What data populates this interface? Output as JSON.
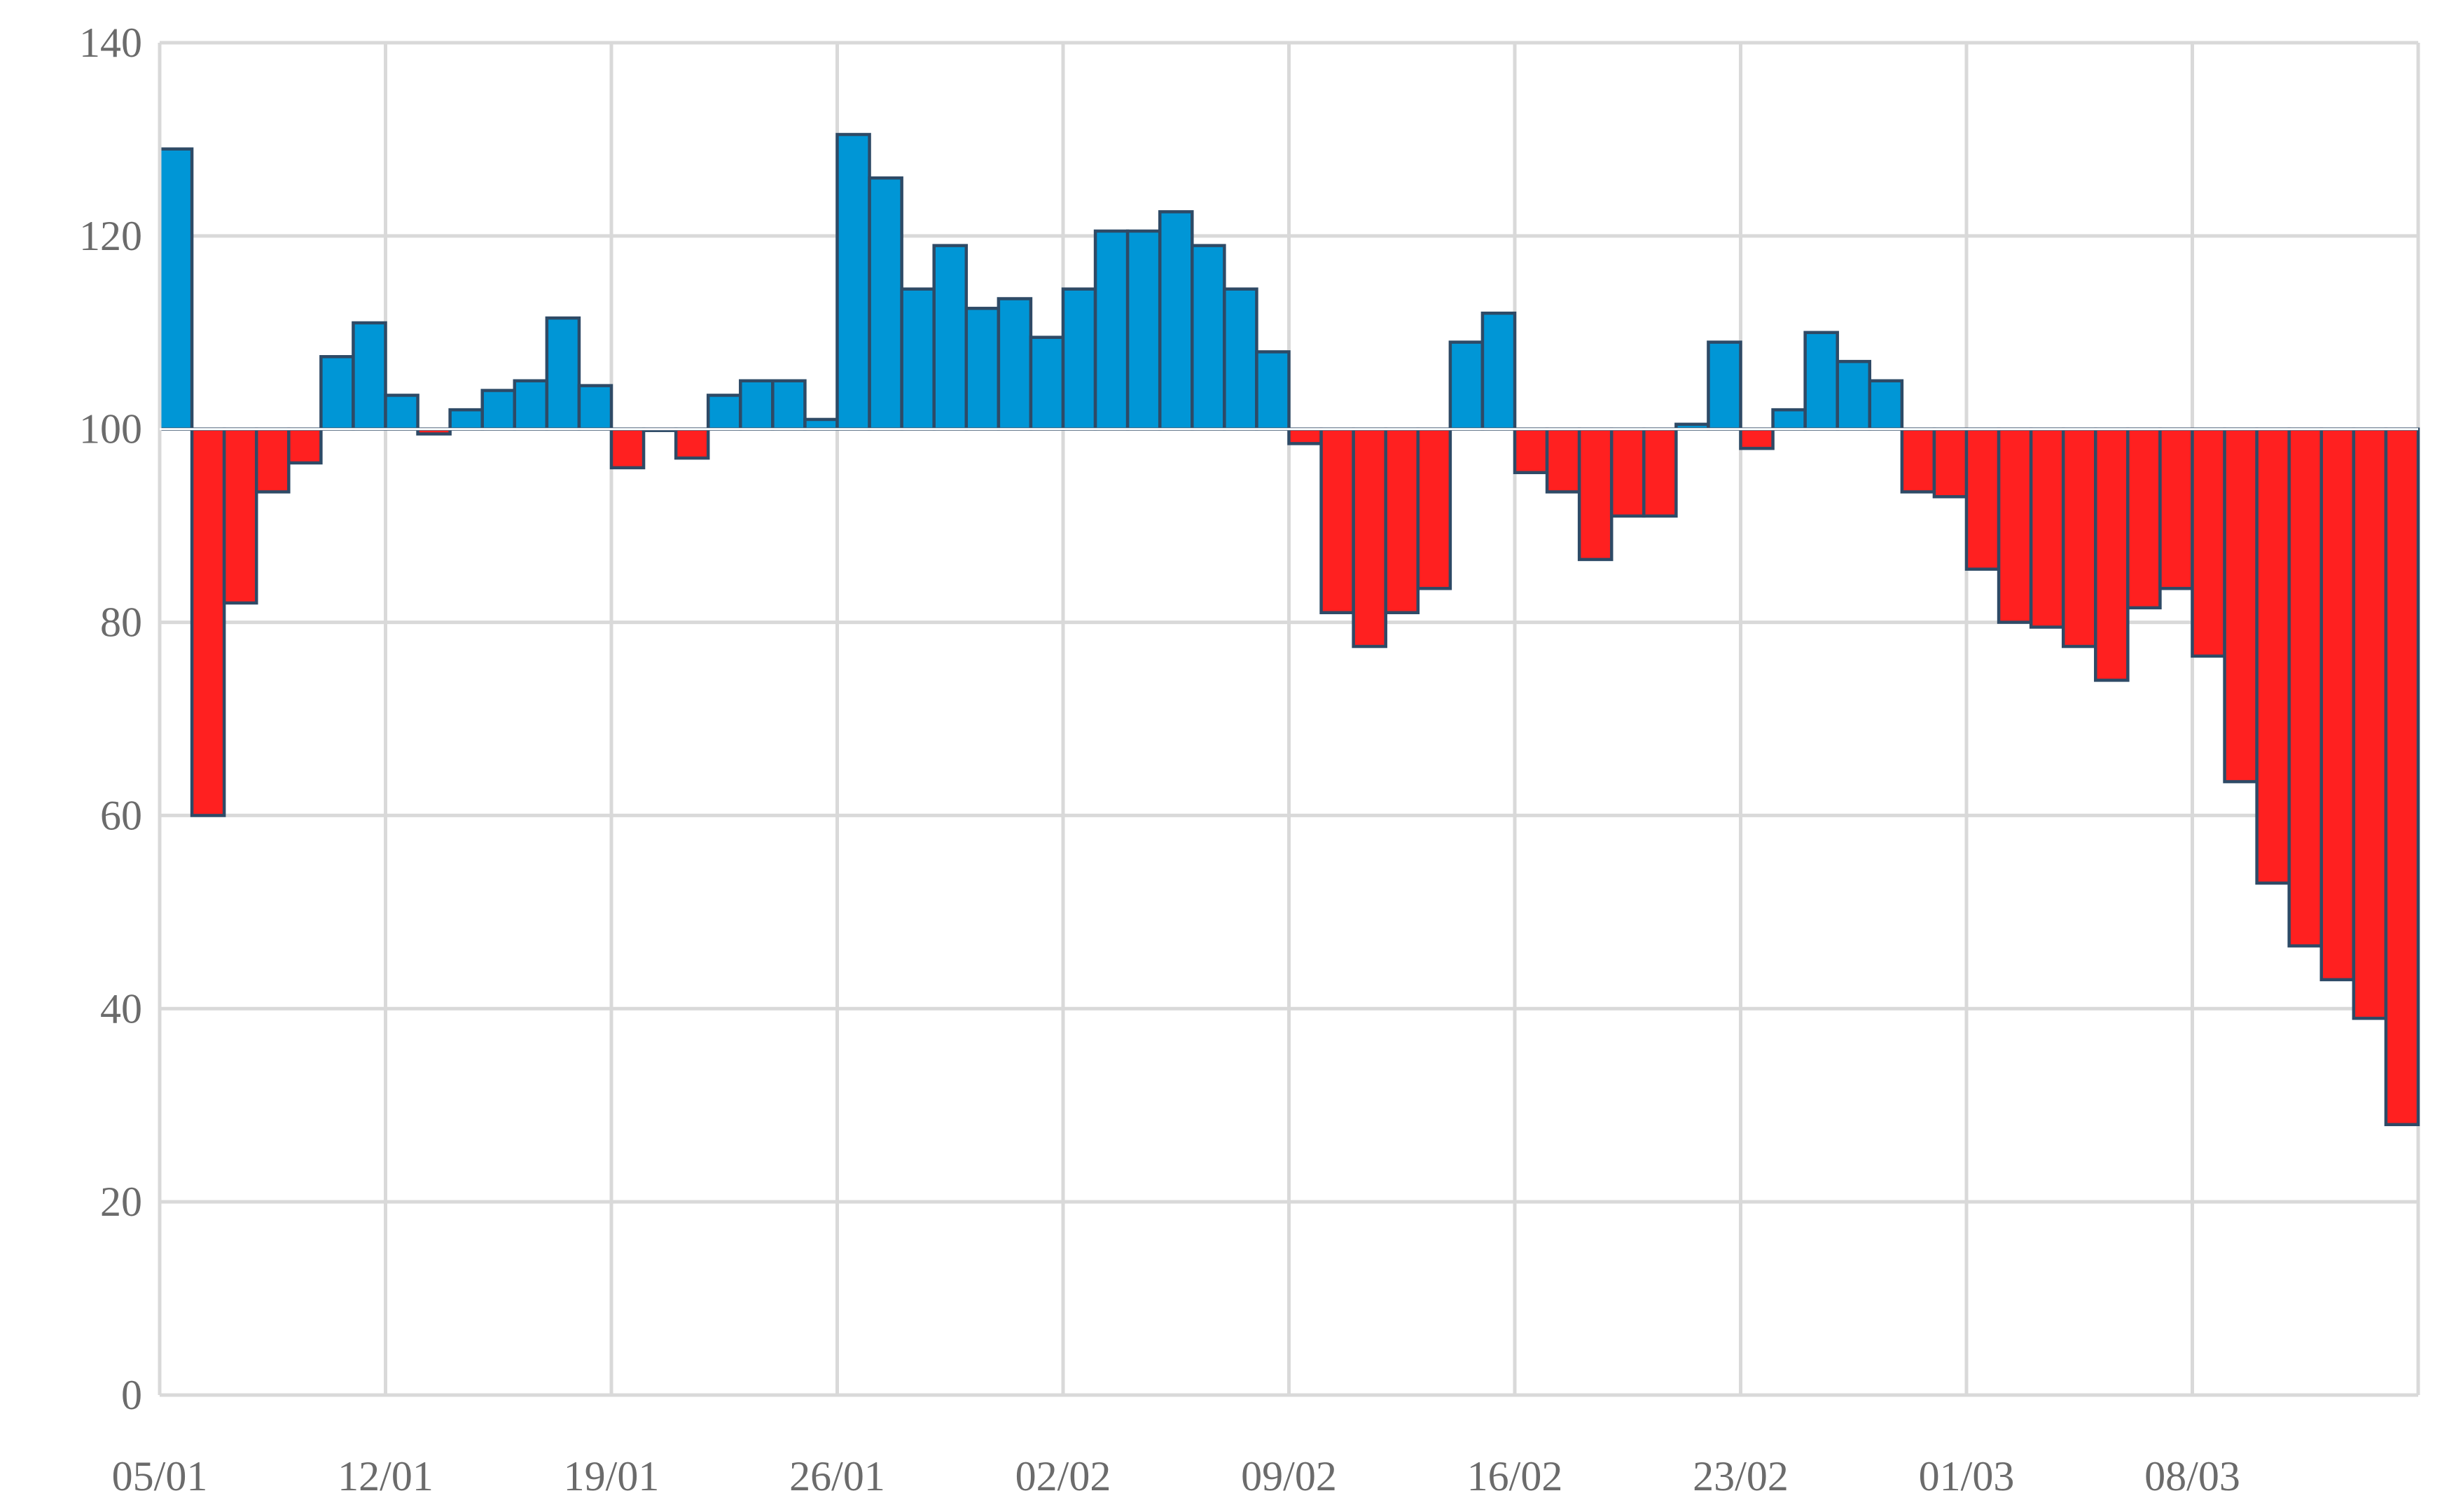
{
  "chart_data": {
    "type": "bar",
    "title": "",
    "xlabel": "",
    "ylabel": "",
    "baseline": 100,
    "ylim": [
      0,
      140
    ],
    "y_ticks": [
      0,
      20,
      40,
      60,
      80,
      100,
      120,
      140
    ],
    "y_tick_labels": [
      "0",
      "20",
      "40",
      "60",
      "80",
      "100",
      "120",
      "140"
    ],
    "x_tick_labels": [
      "05/01",
      "12/01",
      "19/01",
      "26/01",
      "02/02",
      "09/02",
      "16/02",
      "23/02",
      "01/03",
      "08/03"
    ],
    "grid": true,
    "legend": "none",
    "colors": {
      "above": "#0096d6",
      "below": "#ff2020",
      "bar_edge": "#2e4a66",
      "grid": "#d9d9d9",
      "tick_text": "#6b6b6b"
    },
    "categories": [
      "05/01",
      "06/01",
      "07/01",
      "08/01",
      "09/01",
      "10/01",
      "11/01",
      "12/01",
      "13/01",
      "14/01",
      "15/01",
      "16/01",
      "17/01",
      "18/01",
      "19/01",
      "20/01",
      "21/01",
      "22/01",
      "23/01",
      "24/01",
      "25/01",
      "26/01",
      "27/01",
      "28/01",
      "29/01",
      "30/01",
      "31/01",
      "01/02",
      "02/02",
      "03/02",
      "04/02",
      "05/02",
      "06/02",
      "07/02",
      "08/02",
      "09/02",
      "10/02",
      "11/02",
      "12/02",
      "13/02",
      "14/02",
      "15/02",
      "16/02",
      "17/02",
      "18/02",
      "19/02",
      "20/02",
      "21/02",
      "22/02",
      "23/02",
      "24/02",
      "25/02",
      "26/02",
      "27/02",
      "28/02",
      "29/02",
      "01/03",
      "02/03",
      "03/03",
      "04/03",
      "05/03",
      "06/03",
      "07/03",
      "08/03",
      "09/03",
      "10/03",
      "11/03",
      "12/03",
      "13/03",
      "14/03"
    ],
    "values": [
      129,
      60,
      82,
      93.5,
      96.5,
      107.5,
      111,
      103.5,
      99.5,
      102,
      104,
      105,
      111.5,
      104.5,
      96,
      100,
      97,
      103.5,
      105,
      105,
      101,
      130.5,
      126,
      114.5,
      119,
      112.5,
      113.5,
      109.5,
      114.5,
      120.5,
      120.5,
      122.5,
      119,
      114.5,
      108,
      98.5,
      81,
      77.5,
      81,
      83.5,
      109,
      112,
      95.5,
      93.5,
      86.5,
      91,
      91,
      100.5,
      109,
      98,
      102,
      110,
      107,
      105,
      93.5,
      93,
      85.5,
      80,
      79.5,
      77.5,
      74,
      81.5,
      83.5,
      76.5,
      63.5,
      53,
      46.5,
      43,
      39,
      28
    ]
  }
}
